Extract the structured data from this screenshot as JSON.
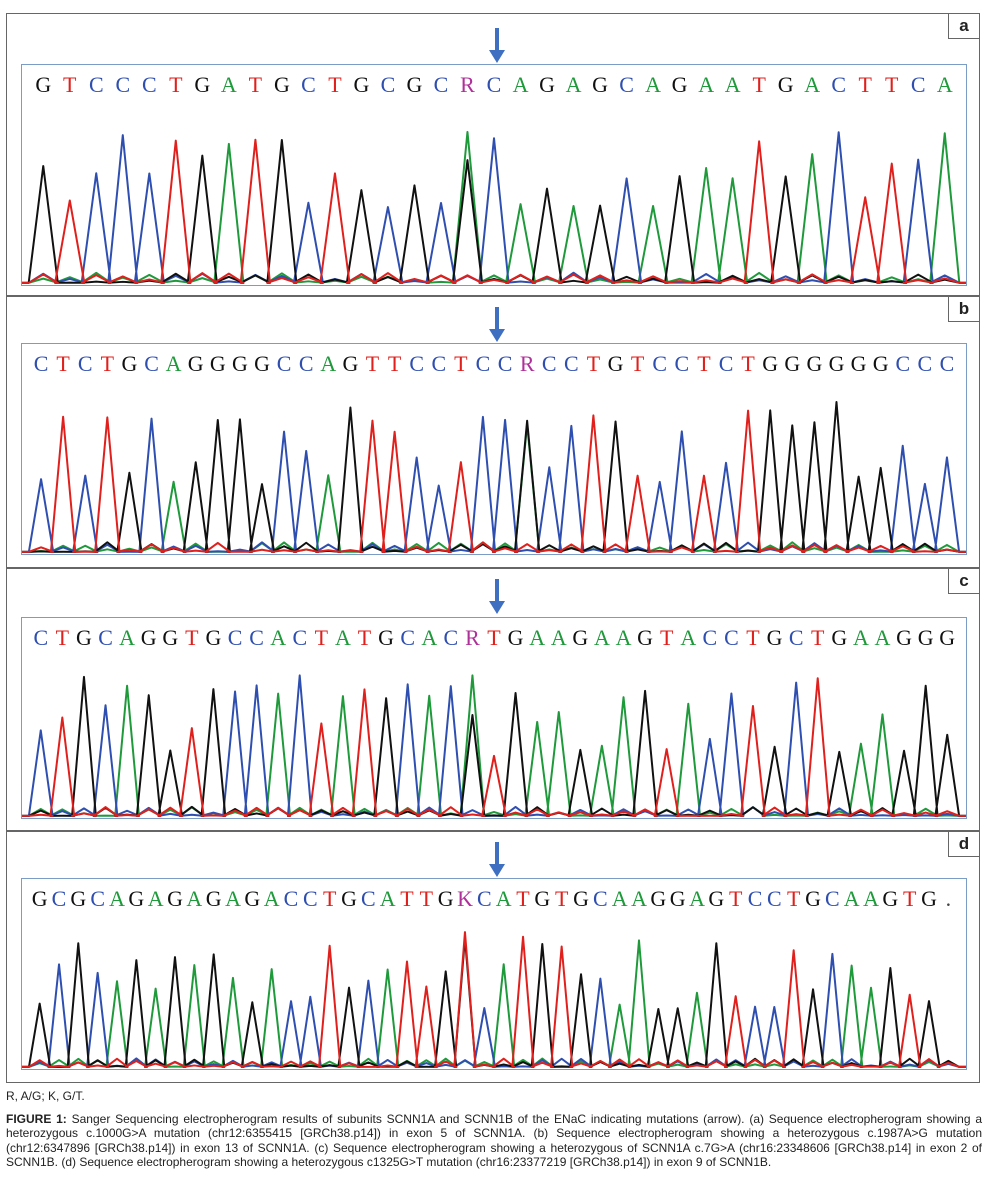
{
  "panels": [
    {
      "letter": "a",
      "sequence": "GTCCCTGATGCTGCGCRCAGAGCAGAATGACTTCA",
      "panel_top": 13,
      "panel_height": 283
    },
    {
      "letter": "b",
      "sequence": "CTCTGCAGGGGCCAGTTCCTCCRCCTGTCCTCTGGGGGGCCC",
      "panel_top": 296,
      "panel_height": 272
    },
    {
      "letter": "c",
      "sequence": "CTGCAGGTGCCACTATGCACRTGAAGAAGTACCTGCTGAAGGG",
      "panel_top": 568,
      "panel_height": 263
    },
    {
      "letter": "d",
      "sequence": "GCGCAGAGAGAGACCTGCATTGKCATGTGCAAGGAGTCCTGCAAGTG.",
      "panel_top": 831,
      "panel_height": 252
    }
  ],
  "colors": {
    "A": "#1f9a3b",
    "C": "#2f4fb0",
    "G": "#111111",
    "T": "#e0201c",
    "ambiguous": "#b0309a",
    "arrow": "#3f6fc1",
    "frame": "#7a9cc6"
  },
  "caption": {
    "legend": "R, A/G; K, G/T.",
    "figure_label": "FIGURE 1:",
    "text": "Sanger Sequencing electropherogram results of subunits SCNN1A and SCNN1B of the ENaC indicating mutations (arrow). (a) Sequence electropherogram showing a heterozygous c.1000G>A mutation (chr12:6355415 [GRCh38.p14]) in exon 5 of SCNN1A. (b) Sequence electropherogram showing a heterozygous c.1987A>G mutation (chr12:6347896 [GRCh38.p14]) in exon 13 of SCNN1A. (c) Sequence electropherogram showing a heterozygous of SCNN1A c.7G>A (chr16:23348606 [GRCh38.p14] in exon 2 of SCNN1B. (d) Sequence electropherogram showing a heterozygous c1325G>T mutation (chr16:23377219 [GRCh38.p14]) in exon 9 of SCNN1B."
  }
}
